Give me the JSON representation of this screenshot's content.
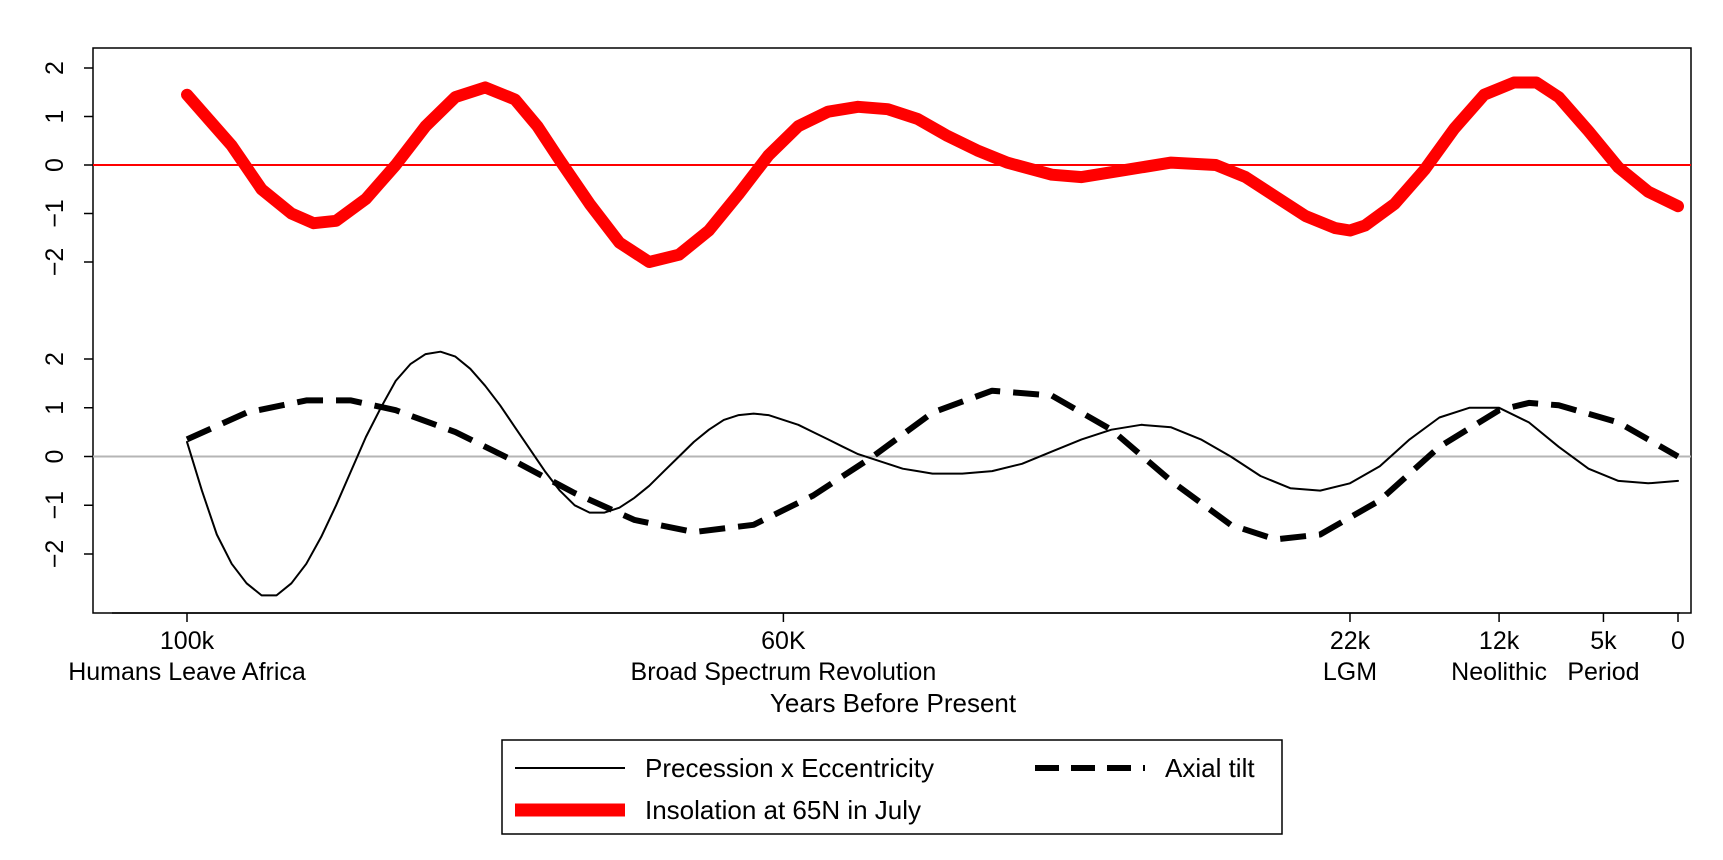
{
  "chart_data": {
    "type": "line",
    "xlabel": "Years Before Present",
    "x_ticks": [
      {
        "value": 100,
        "label": "100k",
        "sublabel": "Humans Leave Africa"
      },
      {
        "value": 60,
        "label": "60K",
        "sublabel": "Broad Spectrum Revolution"
      },
      {
        "value": 22,
        "label": "22k",
        "sublabel": "LGM"
      },
      {
        "value": 12,
        "label": "12k",
        "sublabel": "Neolithic"
      },
      {
        "value": 5,
        "label": "5k",
        "sublabel": "Period"
      },
      {
        "value": 0,
        "label": "0",
        "sublabel": ""
      }
    ],
    "xlim": [
      105,
      0
    ],
    "panels": [
      {
        "ylim": [
          -2.6,
          2.4
        ],
        "y_ticks": [
          {
            "value": 2,
            "label": "2"
          },
          {
            "value": 1,
            "label": "1"
          },
          {
            "value": 0,
            "label": "0"
          },
          {
            "value": -1,
            "label": "−1"
          },
          {
            "value": -2,
            "label": "−2"
          }
        ],
        "zero_line_color": "#ff0000",
        "series": [
          {
            "name": "Insolation at 65N in July",
            "color": "#ff0000",
            "style": "thick",
            "x": [
              100,
              97,
              95,
              93,
              91.5,
              90,
              88,
              86,
              84,
              82,
              80,
              78,
              76.5,
              75,
              73,
              71,
              69,
              67,
              65,
              63,
              61,
              59,
              57,
              55,
              53,
              51,
              49,
              47,
              45,
              42,
              40,
              37,
              34,
              31,
              29,
              27,
              25,
              23,
              22,
              21,
              19,
              17,
              15,
              13,
              11,
              9.5,
              8,
              6,
              4,
              2,
              0
            ],
            "y": [
              1.45,
              0.4,
              -0.5,
              -1.0,
              -1.2,
              -1.15,
              -0.7,
              0.0,
              0.8,
              1.4,
              1.6,
              1.35,
              0.8,
              0.1,
              -0.8,
              -1.6,
              -2.0,
              -1.85,
              -1.35,
              -0.6,
              0.2,
              0.8,
              1.1,
              1.2,
              1.15,
              0.95,
              0.6,
              0.3,
              0.05,
              -0.2,
              -0.25,
              -0.1,
              0.05,
              0.0,
              -0.25,
              -0.65,
              -1.05,
              -1.3,
              -1.35,
              -1.25,
              -0.8,
              -0.1,
              0.75,
              1.45,
              1.7,
              1.7,
              1.4,
              0.7,
              -0.05,
              -0.55,
              -0.85
            ]
          }
        ]
      },
      {
        "ylim": [
          -3.2,
          2.4
        ],
        "y_ticks": [
          {
            "value": 2,
            "label": "2"
          },
          {
            "value": 1,
            "label": "1"
          },
          {
            "value": 0,
            "label": "0"
          },
          {
            "value": -1,
            "label": "−1"
          },
          {
            "value": -2,
            "label": "−2"
          }
        ],
        "zero_line_color": "#b5b5b5",
        "series": [
          {
            "name": "Precession x Eccentricity",
            "color": "#000000",
            "style": "thin",
            "x": [
              100,
              99,
              98,
              97,
              96,
              95,
              94,
              93,
              92,
              91,
              90,
              89,
              88,
              87,
              86,
              85,
              84,
              83,
              82,
              81,
              80,
              79,
              78,
              77,
              76,
              75,
              74,
              73,
              72,
              71,
              70,
              69,
              68,
              67,
              66,
              65,
              64,
              63,
              62,
              61,
              60,
              59,
              58,
              57,
              56,
              55,
              54,
              53,
              52,
              51,
              50,
              48,
              46,
              44,
              42,
              40,
              38,
              36,
              34,
              32,
              30,
              28,
              26,
              24,
              22,
              20,
              18,
              16,
              14,
              12,
              10,
              8,
              6,
              4,
              2,
              0
            ],
            "y": [
              0.3,
              -0.7,
              -1.6,
              -2.2,
              -2.6,
              -2.85,
              -2.85,
              -2.6,
              -2.2,
              -1.65,
              -1.0,
              -0.3,
              0.4,
              1.0,
              1.55,
              1.9,
              2.1,
              2.15,
              2.05,
              1.8,
              1.45,
              1.05,
              0.6,
              0.15,
              -0.3,
              -0.7,
              -1.0,
              -1.15,
              -1.15,
              -1.05,
              -0.85,
              -0.6,
              -0.3,
              0.0,
              0.3,
              0.55,
              0.75,
              0.85,
              0.88,
              0.85,
              0.75,
              0.65,
              0.5,
              0.35,
              0.2,
              0.05,
              -0.05,
              -0.15,
              -0.25,
              -0.3,
              -0.35,
              -0.35,
              -0.3,
              -0.15,
              0.1,
              0.35,
              0.55,
              0.65,
              0.6,
              0.35,
              0.0,
              -0.4,
              -0.65,
              -0.7,
              -0.55,
              -0.2,
              0.35,
              0.8,
              1.0,
              1.0,
              0.7,
              0.2,
              -0.25,
              -0.5,
              -0.55,
              -0.5
            ]
          },
          {
            "name": "Axial tilt",
            "color": "#000000",
            "style": "dashed",
            "x": [
              100,
              96,
              92,
              89,
              86,
              82,
              78,
              74,
              70,
              66,
              62,
              58,
              54,
              50,
              46,
              42,
              38,
              34,
              30,
              27,
              24,
              20,
              16,
              12,
              10,
              8,
              4,
              0
            ],
            "y": [
              0.35,
              0.9,
              1.15,
              1.15,
              0.95,
              0.5,
              -0.1,
              -0.75,
              -1.3,
              -1.55,
              -1.4,
              -0.8,
              0.0,
              0.9,
              1.35,
              1.25,
              0.55,
              -0.5,
              -1.4,
              -1.7,
              -1.6,
              -0.9,
              0.2,
              0.95,
              1.1,
              1.05,
              0.7,
              0.0
            ]
          }
        ]
      }
    ],
    "legend": {
      "position": "bottom-center",
      "entries": [
        {
          "name": "Precession x Eccentricity",
          "style": "thin",
          "color": "#000000"
        },
        {
          "name": "Axial tilt",
          "style": "dashed",
          "color": "#000000"
        },
        {
          "name": "Insolation at 65N in July",
          "style": "thick",
          "color": "#ff0000"
        }
      ]
    }
  }
}
